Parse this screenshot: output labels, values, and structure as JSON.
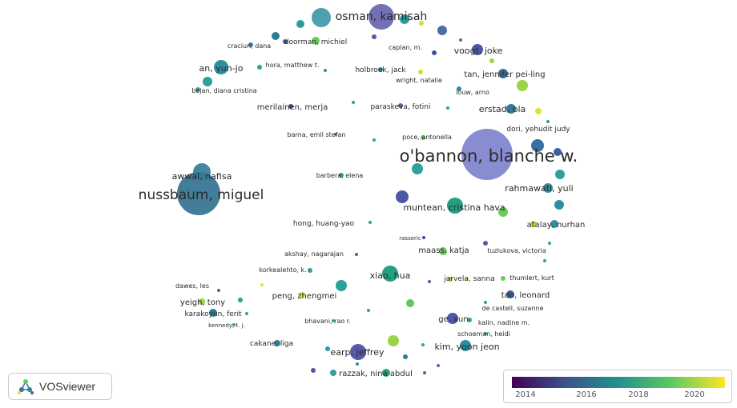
{
  "branding": {
    "app_name": "VOSviewer",
    "logo_icon": "vosviewer-logo-icon"
  },
  "legend": {
    "colormap": [
      "#440154",
      "#3b528b",
      "#21908d",
      "#5ec962",
      "#fde725"
    ],
    "ticks": [
      "2014",
      "2016",
      "2018",
      "2020"
    ]
  },
  "labels": {
    "osman": "osman, kamisah",
    "cracium": "craciun, dana",
    "doorman": "doorman, michiel",
    "caplan": "caplan, m.",
    "voogt": "voogt, joke",
    "an": "an, yun-jo",
    "hora": "hora, matthew t.",
    "holbrook": "holbrook, jack",
    "tanjennifer": "tan, jennifer pei-ling",
    "wright": "wright, natalie",
    "bejan": "bejan, diana cristina",
    "louw": "louw, arno",
    "merilainen": "merilainen, merja",
    "paraskeva": "paraskeva, fotini",
    "erstad": "erstad, ola",
    "dori": "dori, yehudit judy",
    "barna": "barna, emil stefan",
    "poce": "poce, antonella",
    "obannon": "o'bannon, blanche w.",
    "awwal": "awwal, nafisa",
    "barbera": "barbera, elena",
    "nussbaum": "nussbaum, miguel",
    "rahmawati": "rahmawati, yuli",
    "muntean": "muntean, cristina hava",
    "hong": "hong, huang-yao",
    "atalay": "atalay, nurhan",
    "rasseric": "rasseric",
    "akshay": "akshay, nagarajan",
    "maass": "maass, katja",
    "tuzlukova": "tuzlukova, victoria",
    "korkealehto": "korkealehto, k.",
    "xiao": "xiao, hua",
    "dawes": "dawes, les",
    "jarvela": "jarvela, sanna",
    "thumlert": "thumlert, kurt",
    "peng": "peng, zhengmei",
    "tanleonard": "tan, leonard",
    "yeigh": "yeigh, tony",
    "karakoyun": "karakoyun, ferit",
    "decastell": "de castell, suzanne",
    "kennedy": "kennedy, t. j.",
    "bhavani": "bhavani, rao r.",
    "ge": "ge, xun",
    "kalin": "kalin, nadine m.",
    "schoeman": "schoeman, heidi",
    "cakane": "cakane, liga",
    "earp": "earp, jeffrey",
    "kim": "kim, yoon jeon",
    "razzak": "razzak, nina abdul"
  }
}
